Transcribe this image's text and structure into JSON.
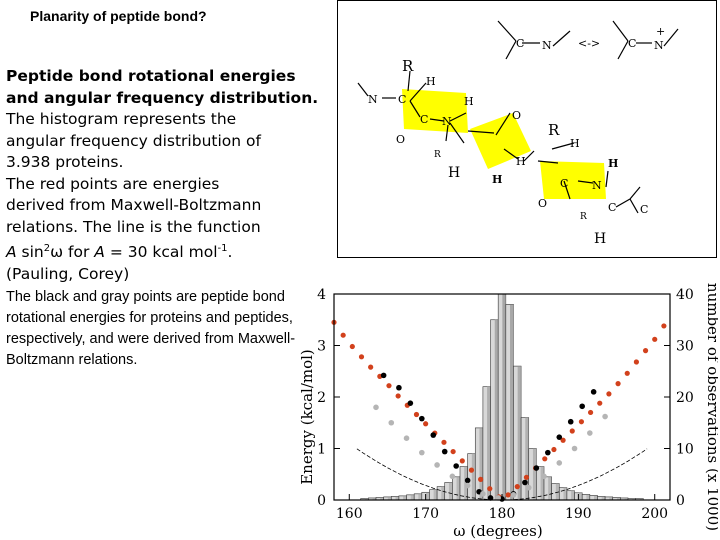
{
  "slide": {
    "title": "Planarity of peptide bond?",
    "heading": "Peptide bond rotational energies and angular frequency distribution.",
    "body_lines": [
      "The histogram represents the",
      "angular frequency distribution of",
      "3.938 proteins.",
      "The red points are energies",
      "derived from Maxwell-Boltzmann",
      "relations. The line is the function"
    ],
    "formula": {
      "A1": "A",
      "sin": " sin",
      "sup2": "2",
      "omega": "ω  for ",
      "A2": "A",
      "rest": " = 30 kcal mol",
      "sup": "-1",
      "end": "."
    },
    "citation": "(Pauling, Corey)",
    "para2": "The black and gray points are peptide bond rotational energies for proteins and peptides, respectively, and were derived from Maxwell-Boltzmann relations."
  },
  "molecule": {
    "labels": [
      "C",
      "N",
      "<->",
      "C",
      "N",
      "+",
      "R",
      "H",
      "N",
      "C",
      "H",
      "O",
      "C",
      "N",
      "O",
      "R",
      "H",
      "H",
      "R",
      "H",
      "H",
      "C",
      "N",
      "H",
      "O",
      "R",
      "C",
      "C",
      "H"
    ],
    "highlight_color": "#ffff00"
  },
  "chart_data": {
    "type": "bar",
    "xlabel": "ω (degrees)",
    "ylabel_left": "Energy (kcal/mol)",
    "ylabel_right": "number of observations (x 1000)",
    "x_range": [
      158,
      202
    ],
    "y_left_range": [
      0,
      4
    ],
    "y_right_range": [
      0,
      40
    ],
    "x_ticks": [
      160,
      170,
      180,
      190,
      200
    ],
    "y_left_ticks": [
      0,
      1,
      2,
      3,
      4
    ],
    "y_right_ticks": [
      0,
      10,
      20,
      30,
      40
    ],
    "histogram": {
      "bin_width": 1,
      "bins": [
        162,
        163,
        164,
        165,
        166,
        167,
        168,
        169,
        170,
        171,
        172,
        173,
        174,
        175,
        176,
        177,
        178,
        179,
        180,
        181,
        182,
        183,
        184,
        185,
        186,
        187,
        188,
        189,
        190,
        191,
        192,
        193,
        194,
        195,
        196,
        197,
        198
      ],
      "counts": [
        0.3,
        0.4,
        0.5,
        0.6,
        0.7,
        0.8,
        1.0,
        1.2,
        1.5,
        2.0,
        2.6,
        3.4,
        4.5,
        6.5,
        9.0,
        14.0,
        22.0,
        35.0,
        40.0,
        38.0,
        26.0,
        16.0,
        10.0,
        6.5,
        4.5,
        3.2,
        2.4,
        1.8,
        1.4,
        1.1,
        0.9,
        0.7,
        0.6,
        0.5,
        0.4,
        0.3,
        0.3
      ]
    },
    "curve": {
      "A": 30,
      "function": "A sin^2 ω",
      "color": "#000000"
    },
    "series": [
      {
        "color": "#d2411c",
        "x": [
          158,
          159.2,
          160.4,
          161.6,
          162.8,
          164,
          165.2,
          166.4,
          167.6,
          168.8,
          170,
          171.2,
          172.4,
          173.6,
          174.8,
          176,
          177.2,
          178.4,
          179.6,
          180.8,
          182,
          183.2,
          184.4,
          185.6,
          186.8,
          188,
          189.2,
          190.4,
          191.6,
          192.8,
          194,
          195.2,
          196.4,
          197.6,
          198.8,
          200,
          201.2
        ],
        "y": [
          3.45,
          3.2,
          2.98,
          2.78,
          2.58,
          2.4,
          2.22,
          2.02,
          1.84,
          1.66,
          1.48,
          1.3,
          1.12,
          0.94,
          0.76,
          0.58,
          0.4,
          0.22,
          0.06,
          0.1,
          0.26,
          0.44,
          0.62,
          0.8,
          0.98,
          1.16,
          1.34,
          1.52,
          1.7,
          1.88,
          2.06,
          2.26,
          2.46,
          2.68,
          2.9,
          3.12,
          3.38
        ]
      },
      {
        "color": "#000000",
        "x": [
          164.5,
          166.5,
          168,
          169.5,
          171,
          172.5,
          174,
          175.5,
          177,
          178.5,
          180,
          181.5,
          183,
          184.5,
          186,
          187.5,
          189,
          190.5,
          192
        ],
        "y": [
          2.42,
          2.18,
          1.88,
          1.58,
          1.26,
          0.94,
          0.66,
          0.38,
          0.16,
          0.04,
          0.02,
          0.12,
          0.34,
          0.62,
          0.92,
          1.22,
          1.52,
          1.82,
          2.1
        ]
      },
      {
        "color": "#b5b5b5",
        "x": [
          163.5,
          165.5,
          167.5,
          169.5,
          171.5,
          173.5,
          175.5,
          177.5,
          179.5,
          181.5,
          183.5,
          185.5,
          187.5,
          189.5,
          191.5,
          193.5
        ],
        "y": [
          1.8,
          1.5,
          1.2,
          0.92,
          0.68,
          0.46,
          0.28,
          0.12,
          0.04,
          0.1,
          0.24,
          0.46,
          0.72,
          1.0,
          1.3,
          1.62
        ]
      }
    ]
  }
}
